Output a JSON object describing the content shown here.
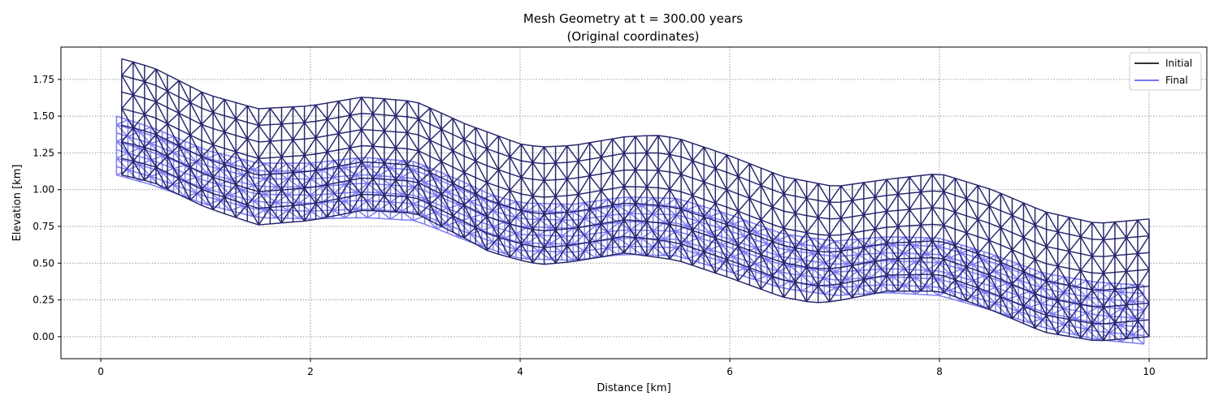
{
  "figure": {
    "title_line1": "Mesh Geometry at t = 300.00 years",
    "title_line2": "(Original coordinates)"
  },
  "chart_data": {
    "type": "line",
    "title": "Mesh Geometry at t = 300.00 years\n(Original coordinates)",
    "xlabel": "Distance [km]",
    "ylabel": "Elevation [km]",
    "xlim": [
      -0.38,
      10.55
    ],
    "ylim": [
      -0.15,
      1.97
    ],
    "xticks": [
      0,
      2,
      4,
      6,
      8,
      10
    ],
    "yticks": [
      0.0,
      0.25,
      0.5,
      0.75,
      1.0,
      1.25,
      1.5,
      1.75
    ],
    "xtick_labels": [
      "0",
      "2",
      "4",
      "6",
      "8",
      "10"
    ],
    "ytick_labels": [
      "0.00",
      "0.25",
      "0.50",
      "0.75",
      "1.00",
      "1.25",
      "1.50",
      "1.75"
    ],
    "grid": true,
    "legend_position": "top-right",
    "series": [
      {
        "name": "Initial",
        "color": "#333333"
      },
      {
        "name": "Final",
        "color": "#7777ee"
      }
    ],
    "mesh_color": "#1a1a80",
    "initial_mesh": {
      "x_range": [
        0.2,
        10.0
      ],
      "bottom_surface": [
        [
          0.2,
          1.1
        ],
        [
          0.5,
          1.05
        ],
        [
          1.0,
          0.88
        ],
        [
          1.5,
          0.76
        ],
        [
          2.0,
          0.79
        ],
        [
          2.5,
          0.86
        ],
        [
          3.0,
          0.84
        ],
        [
          3.5,
          0.66
        ],
        [
          3.7,
          0.58
        ],
        [
          4.0,
          0.52
        ],
        [
          4.2,
          0.49
        ],
        [
          4.5,
          0.51
        ],
        [
          5.0,
          0.57
        ],
        [
          5.5,
          0.52
        ],
        [
          6.0,
          0.4
        ],
        [
          6.5,
          0.27
        ],
        [
          6.8,
          0.23
        ],
        [
          7.0,
          0.24
        ],
        [
          7.5,
          0.31
        ],
        [
          8.0,
          0.31
        ],
        [
          8.5,
          0.18
        ],
        [
          9.0,
          0.03
        ],
        [
          9.5,
          -0.03
        ],
        [
          10.0,
          0.0
        ]
      ],
      "top_surface": [
        [
          0.2,
          1.89
        ],
        [
          0.5,
          1.83
        ],
        [
          1.0,
          1.65
        ],
        [
          1.5,
          1.55
        ],
        [
          2.0,
          1.57
        ],
        [
          2.5,
          1.63
        ],
        [
          3.0,
          1.6
        ],
        [
          3.5,
          1.44
        ],
        [
          3.7,
          1.39
        ],
        [
          4.0,
          1.31
        ],
        [
          4.2,
          1.29
        ],
        [
          4.5,
          1.3
        ],
        [
          5.0,
          1.36
        ],
        [
          5.3,
          1.37
        ],
        [
          5.5,
          1.35
        ],
        [
          6.0,
          1.23
        ],
        [
          6.5,
          1.09
        ],
        [
          7.0,
          1.02
        ],
        [
          7.5,
          1.07
        ],
        [
          8.0,
          1.11
        ],
        [
          8.5,
          1.0
        ],
        [
          9.0,
          0.85
        ],
        [
          9.5,
          0.77
        ],
        [
          10.0,
          0.8
        ]
      ],
      "rows": 7,
      "columns": 90
    },
    "final_mesh": {
      "x_range": [
        0.15,
        9.95
      ],
      "bottom_surface": [
        [
          0.15,
          1.1
        ],
        [
          0.5,
          1.03
        ],
        [
          1.0,
          0.9
        ],
        [
          1.5,
          0.81
        ],
        [
          2.0,
          0.8
        ],
        [
          2.5,
          0.81
        ],
        [
          3.0,
          0.79
        ],
        [
          3.5,
          0.65
        ],
        [
          3.7,
          0.6
        ],
        [
          4.0,
          0.53
        ],
        [
          4.5,
          0.52
        ],
        [
          5.0,
          0.56
        ],
        [
          5.5,
          0.55
        ],
        [
          6.0,
          0.44
        ],
        [
          6.5,
          0.33
        ],
        [
          7.0,
          0.28
        ],
        [
          7.5,
          0.3
        ],
        [
          8.0,
          0.28
        ],
        [
          8.5,
          0.18
        ],
        [
          9.0,
          0.06
        ],
        [
          9.5,
          -0.02
        ],
        [
          9.95,
          -0.05
        ]
      ],
      "top_surface": [
        [
          0.15,
          1.5
        ],
        [
          0.5,
          1.42
        ],
        [
          1.0,
          1.27
        ],
        [
          1.5,
          1.18
        ],
        [
          2.0,
          1.18
        ],
        [
          2.5,
          1.22
        ],
        [
          3.0,
          1.19
        ],
        [
          3.5,
          1.04
        ],
        [
          3.7,
          0.97
        ],
        [
          4.0,
          0.91
        ],
        [
          4.5,
          0.9
        ],
        [
          5.0,
          0.95
        ],
        [
          5.5,
          0.94
        ],
        [
          6.0,
          0.83
        ],
        [
          6.5,
          0.7
        ],
        [
          7.0,
          0.65
        ],
        [
          7.5,
          0.68
        ],
        [
          8.0,
          0.67
        ],
        [
          8.5,
          0.56
        ],
        [
          9.0,
          0.43
        ],
        [
          9.5,
          0.37
        ],
        [
          9.95,
          0.35
        ]
      ]
    }
  }
}
